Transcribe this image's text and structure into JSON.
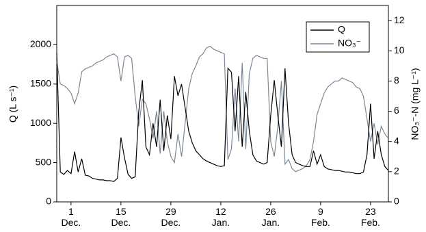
{
  "chart_data": {
    "type": "line",
    "ylabel": "Q (L s⁻¹)",
    "y2label": "NO₃⁻-N (mg L⁻¹)",
    "x": [
      -4,
      -3,
      -2,
      -1,
      0,
      1,
      2,
      3,
      4,
      5,
      6,
      7,
      8,
      9,
      10,
      11,
      12,
      13,
      14,
      15,
      16,
      17,
      18,
      19,
      20,
      21,
      22,
      23,
      24,
      25,
      26,
      27,
      28,
      29,
      30,
      31,
      32,
      33,
      34,
      35,
      36,
      37,
      38,
      39,
      40,
      41,
      42,
      43,
      44,
      45,
      46,
      47,
      48,
      49,
      50,
      51,
      52,
      53,
      54,
      55,
      56,
      57,
      58,
      59,
      60,
      61,
      62,
      63,
      64,
      65,
      66,
      67,
      68,
      69,
      70,
      71,
      72,
      73,
      74,
      75,
      76,
      77,
      78,
      79,
      80,
      81,
      82,
      83,
      84,
      85,
      86,
      87,
      88,
      89
    ],
    "xlim": [
      -4,
      89
    ],
    "xticks": [
      {
        "value": 0,
        "label": "1\nDec."
      },
      {
        "value": 14,
        "label": "15\nDec."
      },
      {
        "value": 28,
        "label": "29\nDec."
      },
      {
        "value": 42,
        "label": "12\nJan."
      },
      {
        "value": 56,
        "label": "26\nJan."
      },
      {
        "value": 70,
        "label": "9\nFeb."
      },
      {
        "value": 84,
        "label": "23\nFeb."
      }
    ],
    "ylim": [
      0,
      2500
    ],
    "yticks": [
      0,
      500,
      1000,
      1500,
      2000
    ],
    "y2lim": [
      0,
      13
    ],
    "y2ticks": [
      0,
      2,
      4,
      6,
      8,
      10,
      12
    ],
    "grid": false,
    "legend": "upper right",
    "series": [
      {
        "name": "Q",
        "color": "#000000",
        "values": [
          1900,
          380,
          350,
          400,
          360,
          640,
          380,
          550,
          340,
          330,
          300,
          290,
          280,
          280,
          270,
          270,
          260,
          300,
          820,
          560,
          350,
          300,
          320,
          1150,
          1550,
          700,
          600,
          1000,
          700,
          1300,
          650,
          1100,
          800,
          1600,
          1350,
          1500,
          1200,
          900,
          750,
          650,
          600,
          550,
          520,
          500,
          480,
          460,
          450,
          460,
          1700,
          1650,
          900,
          1600,
          700,
          1400,
          900,
          600,
          520,
          500,
          480,
          500,
          1100,
          1550,
          1100,
          700,
          1700,
          1000,
          600,
          500,
          480,
          460,
          450,
          450,
          650,
          480,
          600,
          450,
          420,
          410,
          400,
          400,
          390,
          380,
          380,
          370,
          360,
          360,
          380,
          600,
          1250,
          550,
          900,
          600,
          450,
          400
        ]
      },
      {
        "name": "NO₃⁻",
        "color": "#7a8898",
        "axis": "y2",
        "values": [
          9.3,
          7.8,
          7.7,
          7.5,
          7.2,
          6.5,
          7.2,
          8.6,
          8.8,
          8.9,
          9.0,
          9.2,
          9.3,
          9.4,
          9.6,
          9.7,
          9.8,
          9.6,
          8.0,
          9.6,
          9.7,
          9.5,
          7.0,
          5.0,
          6.8,
          6.5,
          5.5,
          4.2,
          6.0,
          3.2,
          6.0,
          4.0,
          3.0,
          2.6,
          4.5,
          3.0,
          5.2,
          7.5,
          8.5,
          9.0,
          9.6,
          9.8,
          10.2,
          10.3,
          10.1,
          10.0,
          9.9,
          9.8,
          2.8,
          3.5,
          7.5,
          4.0,
          9.2,
          3.5,
          8.5,
          9.5,
          9.7,
          9.6,
          9.5,
          9.5,
          4.0,
          3.0,
          5.0,
          8.0,
          2.5,
          2.8,
          2.2,
          2.0,
          2.1,
          2.2,
          2.4,
          2.8,
          4.0,
          5.8,
          6.5,
          7.2,
          7.6,
          7.8,
          8.0,
          8.0,
          8.2,
          8.1,
          8.0,
          7.9,
          7.6,
          7.5,
          7.0,
          5.5,
          4.0,
          5.2,
          3.8,
          5.0,
          4.5,
          4.2
        ]
      }
    ]
  }
}
